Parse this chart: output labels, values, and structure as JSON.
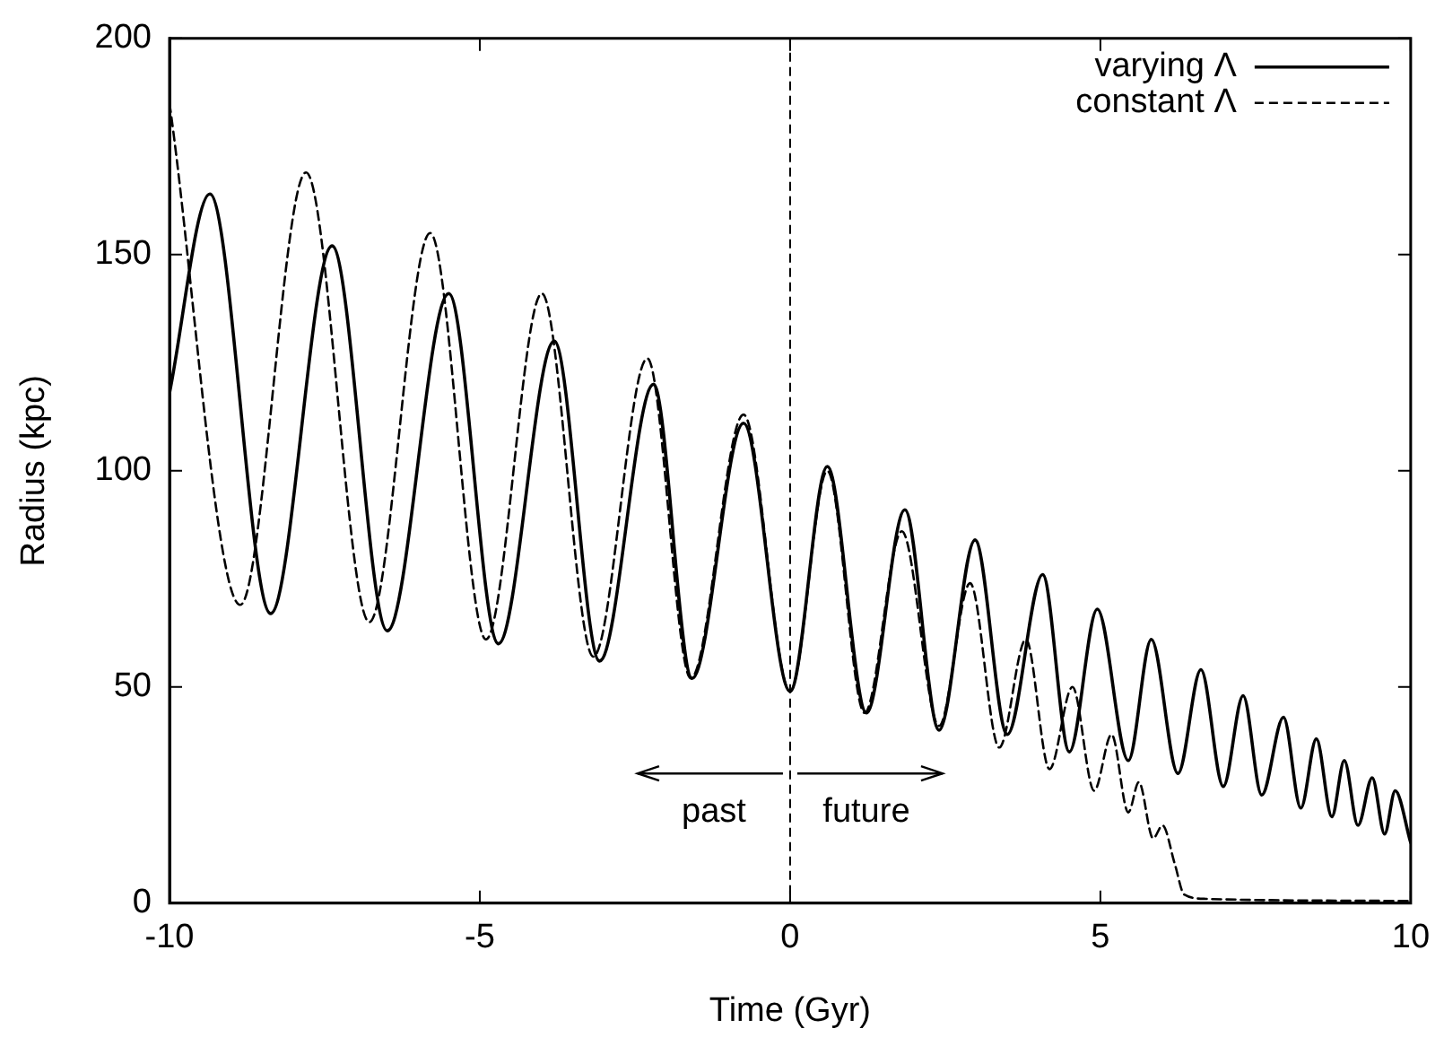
{
  "chart_data": {
    "type": "line",
    "xlabel": "Time (Gyr)",
    "ylabel": "Radius (kpc)",
    "xlim": [
      -10,
      10
    ],
    "xticks": [
      -10,
      -5,
      0,
      5,
      10
    ],
    "ylim": [
      0,
      200
    ],
    "yticks": [
      0,
      50,
      100,
      150,
      200
    ],
    "grid": false,
    "legend": "top right",
    "marker": "none",
    "series": [
      {
        "name": "varying Λ",
        "color": "#000000",
        "line_style": "solid",
        "x": [
          -10,
          -9.35,
          -8.37,
          -7.38,
          -6.49,
          -5.5,
          -4.7,
          -3.8,
          -3.07,
          -2.2,
          -1.58,
          -0.75,
          0,
          0.6,
          1.23,
          1.85,
          2.4,
          2.98,
          3.5,
          4.07,
          4.5,
          4.95,
          5.45,
          5.82,
          6.25,
          6.62,
          6.98,
          7.3,
          7.6,
          7.95,
          8.23,
          8.48,
          8.73,
          8.93,
          9.15,
          9.38,
          9.58,
          9.75,
          10
        ],
        "values": [
          118,
          164,
          67,
          152,
          63,
          141,
          60,
          130,
          56,
          120,
          52,
          111,
          49,
          101,
          44,
          91,
          40,
          84,
          39,
          76,
          35,
          68,
          33,
          61,
          30,
          54,
          27,
          48,
          25,
          43,
          22,
          38,
          20,
          33,
          18,
          29,
          16,
          26,
          14
        ]
      },
      {
        "name": "constant Λ",
        "color": "#000000",
        "line_style": "dashed",
        "x": [
          -10,
          -8.86,
          -7.8,
          -6.78,
          -5.8,
          -4.9,
          -4.0,
          -3.17,
          -2.3,
          -1.6,
          -0.75,
          0,
          0.6,
          1.2,
          1.8,
          2.4,
          2.9,
          3.37,
          3.8,
          4.18,
          4.55,
          4.9,
          5.18,
          5.45,
          5.62,
          5.85,
          6.0,
          6.2,
          6.35,
          6.7,
          10
        ],
        "values": [
          185,
          69,
          169,
          65,
          155,
          61,
          141,
          57,
          126,
          52,
          113,
          49,
          100,
          44,
          86,
          41,
          74,
          36,
          61,
          31,
          50,
          26,
          39,
          21,
          28,
          15,
          18,
          9,
          2,
          1,
          0.5
        ]
      }
    ],
    "ref_lines": [
      {
        "axis": "x",
        "value": 0,
        "line_style": "dashed",
        "color": "#000000"
      }
    ],
    "annotations": [
      "past",
      "future"
    ]
  }
}
